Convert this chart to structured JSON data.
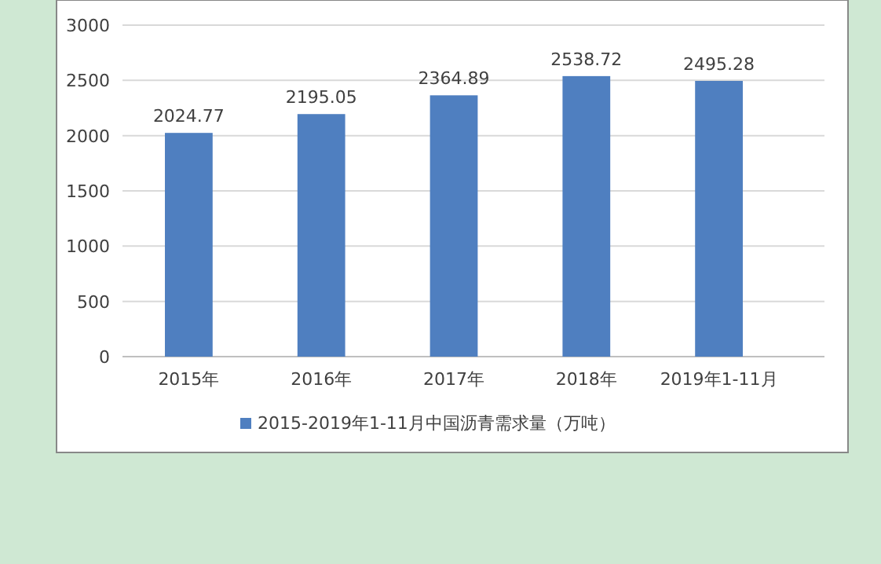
{
  "chart_data": {
    "type": "bar",
    "categories": [
      "2015年",
      "2016年",
      "2017年",
      "2018年",
      "2019年1-11月"
    ],
    "series": [
      {
        "name": "2015-2019年1-11月中国沥青需求量（万吨）",
        "color": "#4f7fc0",
        "values": [
          2024.77,
          2195.05,
          2364.89,
          2538.72,
          2495.28
        ]
      }
    ],
    "ylim": [
      0,
      3000
    ],
    "yticks": [
      0,
      500,
      1000,
      1500,
      2000,
      2500,
      3000
    ],
    "grid": "y",
    "legend": "bottom",
    "data_labels": true
  }
}
